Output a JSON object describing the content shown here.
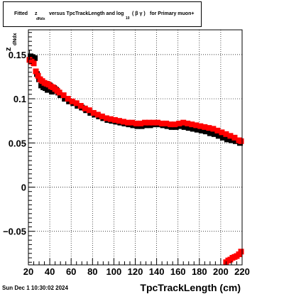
{
  "title": {
    "prefix": "Fitted",
    "z": "z",
    "z_sub": "dNdx",
    "middle": "versus TpcTrackLength and log",
    "log_sub": "10",
    "beta_gamma": "( β γ )",
    "suffix": "for Primary muon+"
  },
  "footer": {
    "timestamp": "Sun Dec  1 10:30:02 2024"
  },
  "colors": {
    "series_black": "#000000",
    "series_red": "#ff0000",
    "grid": "#000000",
    "frame": "#000000"
  },
  "chart_data": {
    "type": "scatter",
    "xlabel": "TpcTrackLength (cm)",
    "ylabel": "z",
    "ylabel_sub": "dNdx",
    "xlim": [
      20,
      220
    ],
    "ylim": [
      -0.088,
      0.178
    ],
    "xticks": [
      20,
      40,
      60,
      80,
      100,
      120,
      140,
      160,
      180,
      200,
      220
    ],
    "yticks": [
      -0.05,
      0,
      0.05,
      0.1,
      0.15
    ],
    "ytick_labels": [
      "−0.05",
      "0",
      "0.05",
      "0.1",
      "0.15"
    ],
    "grid": true,
    "series": [
      {
        "color": "black",
        "x": [
          22,
          24,
          26,
          28,
          30,
          32,
          34,
          36,
          38,
          40,
          42,
          44,
          46,
          48,
          50,
          54,
          58,
          62,
          66,
          70,
          74,
          78,
          82,
          86,
          90,
          94,
          98,
          102,
          106,
          110,
          114,
          118,
          122,
          126,
          130,
          134,
          138,
          142,
          146,
          150,
          154,
          158,
          162,
          166,
          170,
          174,
          178,
          182,
          186,
          190,
          194,
          198,
          202,
          206,
          210,
          214,
          218
        ],
        "y": [
          0.148,
          0.147,
          0.146,
          0.128,
          0.122,
          0.115,
          0.113,
          0.112,
          0.11,
          0.115,
          0.108,
          0.112,
          0.11,
          0.107,
          0.104,
          0.1,
          0.097,
          0.095,
          0.092,
          0.09,
          0.087,
          0.084,
          0.082,
          0.08,
          0.078,
          0.076,
          0.075,
          0.074,
          0.073,
          0.072,
          0.071,
          0.07,
          0.069,
          0.069,
          0.07,
          0.07,
          0.071,
          0.071,
          0.07,
          0.069,
          0.068,
          0.068,
          0.069,
          0.068,
          0.067,
          0.066,
          0.065,
          0.064,
          0.063,
          0.061,
          0.06,
          0.058,
          0.056,
          0.054,
          0.053,
          0.052,
          0.05
        ]
      },
      {
        "color": "red",
        "x": [
          21,
          23,
          25,
          27,
          29,
          31,
          33,
          35,
          37,
          39,
          41,
          43,
          45,
          47,
          49,
          53,
          57,
          61,
          65,
          69,
          73,
          77,
          81,
          85,
          89,
          93,
          97,
          101,
          105,
          109,
          113,
          117,
          121,
          125,
          129,
          133,
          137,
          141,
          145,
          149,
          153,
          157,
          161,
          165,
          169,
          173,
          177,
          181,
          185,
          189,
          193,
          197,
          201,
          205,
          209,
          213,
          217,
          219,
          205,
          207,
          209,
          211,
          213,
          215,
          217,
          219
        ],
        "y": [
          0.144,
          0.142,
          0.14,
          0.131,
          0.126,
          0.122,
          0.12,
          0.118,
          0.117,
          0.116,
          0.114,
          0.113,
          0.111,
          0.109,
          0.107,
          0.104,
          0.1,
          0.097,
          0.095,
          0.092,
          0.089,
          0.087,
          0.084,
          0.082,
          0.08,
          0.078,
          0.077,
          0.076,
          0.075,
          0.074,
          0.073,
          0.073,
          0.072,
          0.072,
          0.073,
          0.073,
          0.073,
          0.073,
          0.072,
          0.072,
          0.071,
          0.071,
          0.072,
          0.073,
          0.072,
          0.071,
          0.07,
          0.069,
          0.068,
          0.067,
          0.066,
          0.064,
          0.062,
          0.06,
          0.058,
          0.056,
          0.053,
          0.052,
          -0.085,
          -0.083,
          -0.082,
          -0.08,
          -0.079,
          -0.078,
          -0.076,
          -0.073
        ]
      }
    ]
  }
}
